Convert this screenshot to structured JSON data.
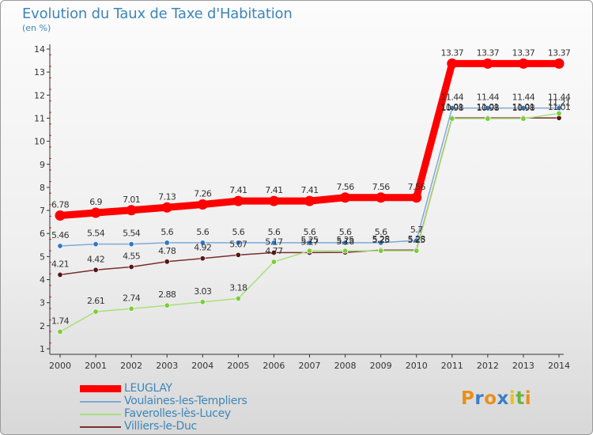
{
  "chart_data": {
    "type": "line",
    "title": "Evolution du Taux de Taxe d'Habitation",
    "subtitle": "(en %)",
    "x": [
      "2000",
      "2001",
      "2002",
      "2003",
      "2004",
      "2005",
      "2006",
      "2007",
      "2008",
      "2009",
      "2010",
      "2011",
      "2012",
      "2013",
      "2014"
    ],
    "ylim": [
      1,
      14
    ],
    "yticks": [
      1,
      2,
      3,
      4,
      5,
      6,
      7,
      8,
      9,
      10,
      11,
      12,
      13,
      14
    ],
    "grid": false,
    "legend_position": "bottom-left",
    "series": [
      {
        "name": "LEUGLAY",
        "color": "#ff0000",
        "values": [
          6.78,
          6.9,
          7.01,
          7.13,
          7.26,
          7.41,
          7.41,
          7.41,
          7.56,
          7.56,
          7.56,
          13.37,
          13.37,
          13.37,
          13.37
        ],
        "labels": [
          "6.78",
          "6.9",
          "7.01",
          "7.13",
          "7.26",
          "7.41",
          "7.41",
          "7.41",
          "7.56",
          "7.56",
          "7.56",
          "13.37",
          "13.37",
          "13.37",
          "13.37"
        ]
      },
      {
        "name": "Voulaines-les-Templiers",
        "color": "#7fa9d6",
        "values": [
          5.46,
          5.54,
          5.54,
          5.6,
          5.6,
          5.6,
          5.6,
          5.6,
          5.6,
          5.6,
          5.7,
          11.44,
          11.44,
          11.44,
          11.44
        ],
        "labels": [
          "5.46",
          "5.54",
          "5.54",
          "5.6",
          "5.6",
          "5.6",
          "5.6",
          "5.6",
          "5.6",
          "5.6",
          "5.7",
          "11.44",
          "11.44",
          "11.44",
          "11.44"
        ]
      },
      {
        "name": "Faverolles-lès-Lucey",
        "color": "#a9e07a",
        "values": [
          1.74,
          2.61,
          2.74,
          2.88,
          3.03,
          3.18,
          4.77,
          5.25,
          5.25,
          5.25,
          5.25,
          10.98,
          10.98,
          10.98,
          11.21
        ],
        "labels": [
          "1.74",
          "2.61",
          "2.74",
          "2.88",
          "3.03",
          "3.18",
          "4.77",
          "5.25",
          "5.25",
          "5.25",
          "5.25",
          "10.98",
          "10.98",
          "10.98",
          "11.21"
        ]
      },
      {
        "name": "Villiers-le-Duc",
        "color": "#7a2e2e",
        "values": [
          4.21,
          4.42,
          4.55,
          4.78,
          4.92,
          5.07,
          5.17,
          5.17,
          5.18,
          5.28,
          5.28,
          11.01,
          11.01,
          11.01,
          11.01
        ],
        "labels": [
          "4.21",
          "4.42",
          "4.55",
          "4.78",
          "4.92",
          "5.07",
          "5.17",
          "5.17",
          "5.18",
          "5.28",
          "5.28",
          "11.01",
          "11.01",
          "11.01",
          "11.01"
        ]
      }
    ]
  },
  "logo": {
    "text": "Proxiti",
    "letters": [
      "P",
      "r",
      "o",
      "x",
      "i",
      "t",
      "i"
    ],
    "colors": [
      "#e8901a",
      "#3b7fc4",
      "#e8901a",
      "#3b7fc4",
      "#e8c21a",
      "#6cb33f",
      "#e8901a"
    ]
  }
}
